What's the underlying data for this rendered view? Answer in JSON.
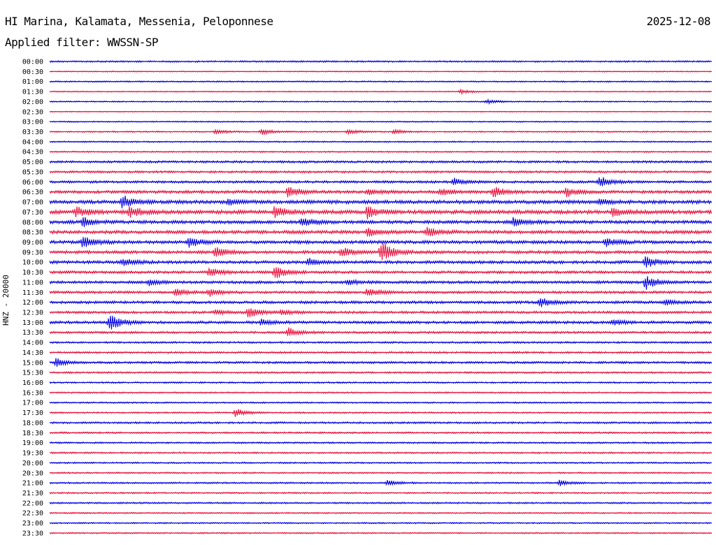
{
  "header": {
    "station": "HI Marina, Kalamata, Messenia, Peloponnese",
    "date": "2025-12-08",
    "filter": "Applied filter: WWSSN-SP",
    "channel": "HNZ - 20000"
  },
  "colors": {
    "trace_a": "#0000e0",
    "trace_b": "#e8103c",
    "background": "#ffffff",
    "text": "#000000"
  },
  "chart_data": {
    "type": "line",
    "subtype": "helicorder",
    "title": "HI Marina, Kalamata, Messenia, Peloponnese",
    "ylabel": "HNZ - 20000",
    "xlabel": "",
    "grid": false,
    "row_labels": [
      "00:00",
      "00:30",
      "01:00",
      "01:30",
      "02:00",
      "02:30",
      "03:00",
      "03:30",
      "04:00",
      "04:30",
      "05:00",
      "05:30",
      "06:00",
      "06:30",
      "07:00",
      "07:30",
      "08:00",
      "08:30",
      "09:00",
      "09:30",
      "10:00",
      "10:30",
      "11:00",
      "11:30",
      "12:00",
      "12:30",
      "13:00",
      "13:30",
      "14:00",
      "14:30",
      "15:00",
      "15:30",
      "16:00",
      "16:30",
      "17:00",
      "17:30",
      "18:00",
      "18:30",
      "19:00",
      "19:30",
      "20:00",
      "20:30",
      "21:00",
      "21:30",
      "22:00",
      "22:30",
      "23:00",
      "23:30"
    ],
    "row_noise": [
      1.2,
      0.8,
      1.0,
      0.8,
      0.9,
      0.7,
      0.9,
      1.0,
      1.0,
      1.0,
      1.6,
      1.6,
      1.8,
      2.2,
      2.6,
      2.8,
      2.4,
      2.4,
      2.4,
      2.2,
      2.2,
      2.0,
      2.0,
      1.8,
      2.0,
      1.8,
      2.0,
      1.6,
      1.4,
      1.4,
      1.6,
      1.3,
      1.2,
      1.1,
      1.1,
      1.1,
      1.4,
      1.3,
      1.2,
      1.2,
      1.1,
      1.1,
      1.2,
      1.1,
      1.2,
      1.0,
      1.0,
      1.0
    ],
    "events": [
      {
        "row": "01:30",
        "positions": [
          0.62
        ],
        "amplitudes": [
          3
        ]
      },
      {
        "row": "02:00",
        "positions": [
          0.66
        ],
        "amplitudes": [
          3
        ]
      },
      {
        "row": "03:30",
        "positions": [
          0.25,
          0.32,
          0.45,
          0.52
        ],
        "amplitudes": [
          4,
          5,
          4,
          3
        ]
      },
      {
        "row": "06:00",
        "positions": [
          0.61,
          0.83
        ],
        "amplitudes": [
          5,
          8
        ]
      },
      {
        "row": "06:30",
        "positions": [
          0.36,
          0.48,
          0.59,
          0.67,
          0.78
        ],
        "amplitudes": [
          8,
          4,
          5,
          9,
          7
        ]
      },
      {
        "row": "07:00",
        "positions": [
          0.11,
          0.27,
          0.83
        ],
        "amplitudes": [
          10,
          4,
          4
        ]
      },
      {
        "row": "07:30",
        "positions": [
          0.04,
          0.12,
          0.34,
          0.48,
          0.85
        ],
        "amplitudes": [
          7,
          8,
          9,
          9,
          6
        ]
      },
      {
        "row": "08:00",
        "positions": [
          0.05,
          0.38,
          0.7
        ],
        "amplitudes": [
          7,
          8,
          6
        ]
      },
      {
        "row": "08:30",
        "positions": [
          0.48,
          0.57
        ],
        "amplitudes": [
          6,
          8
        ]
      },
      {
        "row": "09:00",
        "positions": [
          0.05,
          0.21,
          0.84
        ],
        "amplitudes": [
          9,
          8,
          6
        ]
      },
      {
        "row": "09:30",
        "positions": [
          0.25,
          0.44,
          0.5
        ],
        "amplitudes": [
          8,
          7,
          18
        ]
      },
      {
        "row": "10:00",
        "positions": [
          0.11,
          0.39,
          0.9
        ],
        "amplitudes": [
          6,
          5,
          9
        ]
      },
      {
        "row": "10:30",
        "positions": [
          0.24,
          0.34
        ],
        "amplitudes": [
          7,
          10
        ]
      },
      {
        "row": "11:00",
        "positions": [
          0.15,
          0.45,
          0.9
        ],
        "amplitudes": [
          4,
          4,
          10
        ]
      },
      {
        "row": "11:30",
        "positions": [
          0.19,
          0.24,
          0.48
        ],
        "amplitudes": [
          5,
          6,
          7
        ]
      },
      {
        "row": "12:00",
        "positions": [
          0.74,
          0.93
        ],
        "amplitudes": [
          8,
          4
        ]
      },
      {
        "row": "12:30",
        "positions": [
          0.25,
          0.3,
          0.35
        ],
        "amplitudes": [
          4,
          8,
          4
        ]
      },
      {
        "row": "13:00",
        "positions": [
          0.09,
          0.32,
          0.85
        ],
        "amplitudes": [
          13,
          5,
          4
        ]
      },
      {
        "row": "13:30",
        "positions": [
          0.36
        ],
        "amplitudes": [
          7
        ]
      },
      {
        "row": "15:00",
        "positions": [
          0.01
        ],
        "amplitudes": [
          6
        ]
      },
      {
        "row": "17:30",
        "positions": [
          0.28
        ],
        "amplitudes": [
          6
        ]
      },
      {
        "row": "21:00",
        "positions": [
          0.51,
          0.77
        ],
        "amplitudes": [
          4,
          4
        ]
      }
    ]
  }
}
